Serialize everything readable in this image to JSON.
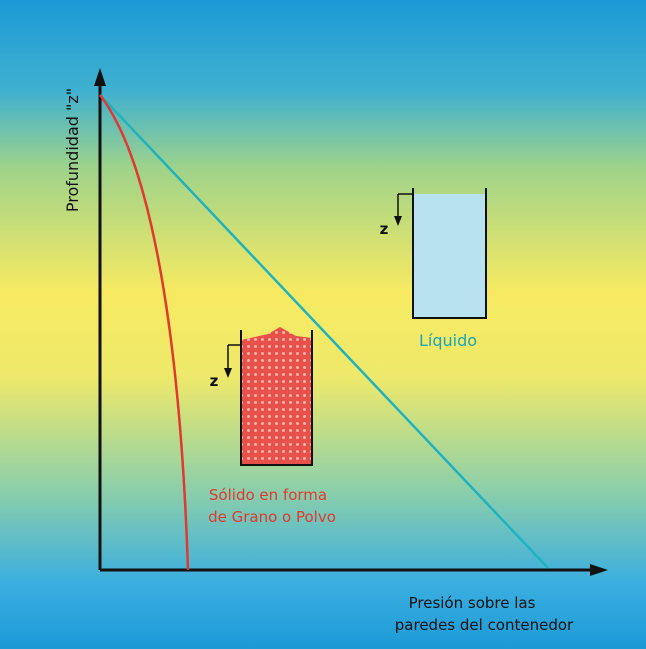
{
  "axis_labels": {
    "y": "Profundidad \"z\"",
    "x": [
      "Presión sobre las",
      "paredes del contenedor"
    ]
  },
  "liquid": {
    "depth_label": "z",
    "label": "Líquido"
  },
  "solid": {
    "depth_label": "z",
    "label": [
      "Sólido en forma",
      "de Grano o Polvo"
    ]
  }
}
